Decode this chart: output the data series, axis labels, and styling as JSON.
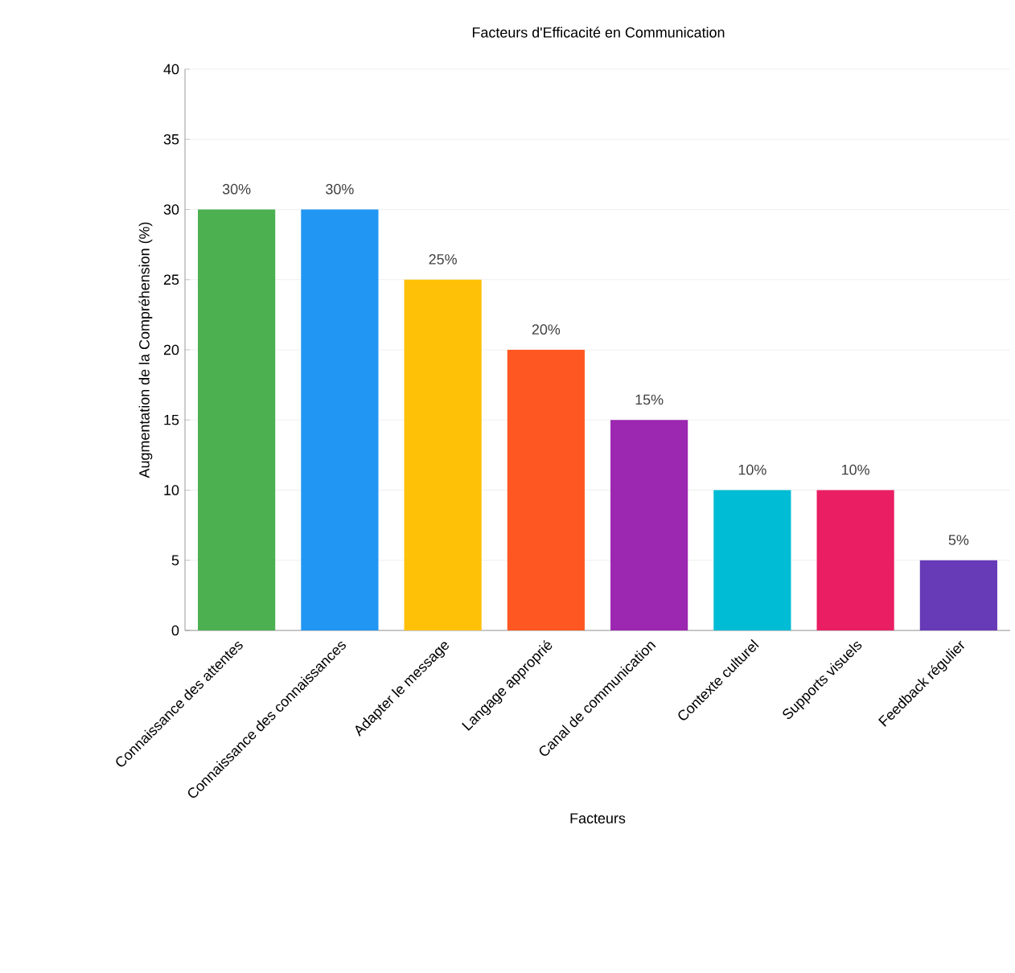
{
  "chart_data": {
    "type": "bar",
    "title": "Facteurs d'Efficacité en Communication",
    "xlabel": "Facteurs",
    "ylabel": "Augmentation de la Compréhension (%)",
    "categories": [
      "Connaissance des attentes",
      "Connaissance des connaissances",
      "Adapter le message",
      "Langage approprié",
      "Canal de communication",
      "Contexte culturel",
      "Supports visuels",
      "Feedback régulier"
    ],
    "values": [
      30,
      30,
      25,
      20,
      15,
      10,
      10,
      5
    ],
    "colors": [
      "#4caf50",
      "#2196f3",
      "#ffc107",
      "#ff5722",
      "#9c27b0",
      "#00bcd4",
      "#e91e63",
      "#673ab7"
    ],
    "value_labels": [
      "30%",
      "30%",
      "25%",
      "20%",
      "15%",
      "10%",
      "10%",
      "5%"
    ],
    "ylim": [
      0,
      40
    ],
    "yticks": [
      0,
      5,
      10,
      15,
      20,
      25,
      30,
      35,
      40
    ],
    "grid": "y"
  }
}
